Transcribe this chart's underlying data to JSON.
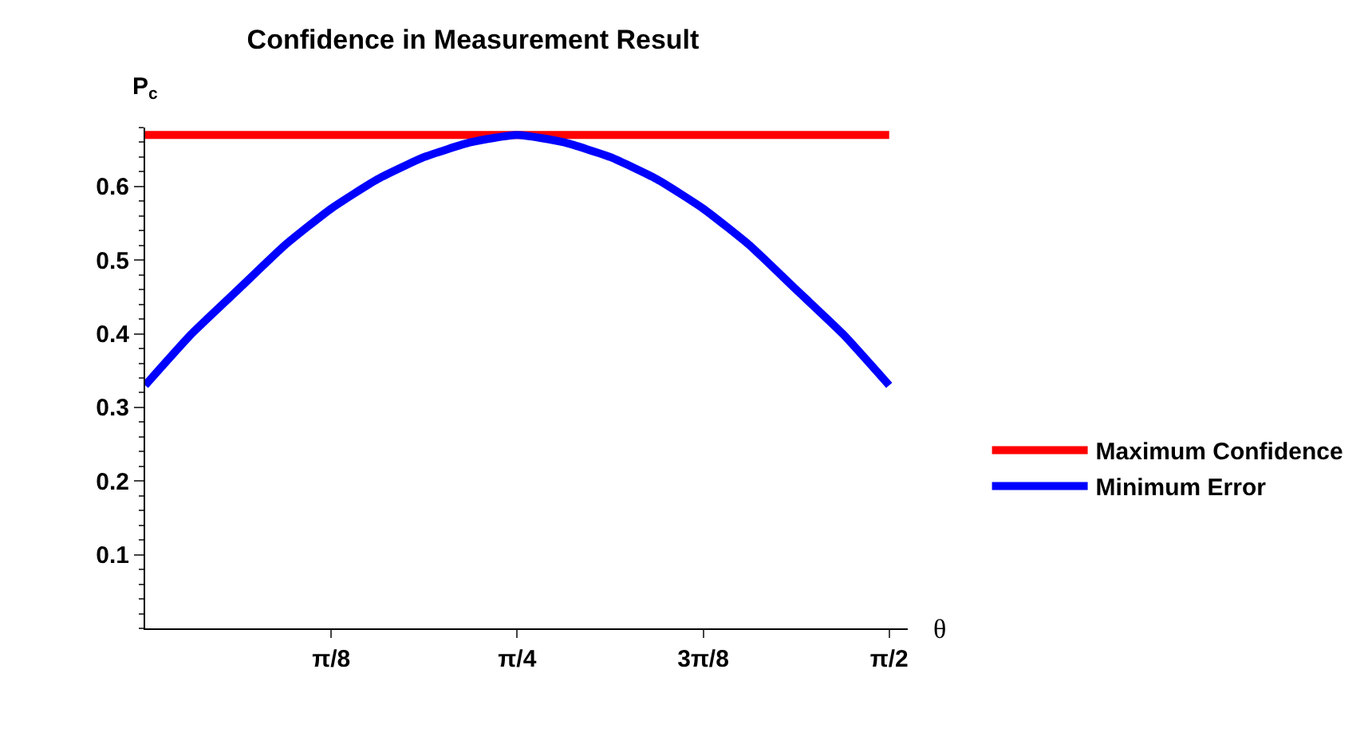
{
  "chart_data": {
    "type": "line",
    "title": "Confidence in Measurement Result",
    "xlabel": "θ",
    "ylabel": "P$_{c}$",
    "x": [
      0,
      0.0982,
      0.1963,
      0.2945,
      0.3927,
      0.4909,
      0.589,
      0.6872,
      0.7854,
      0.8836,
      0.9817,
      1.0799,
      1.1781,
      1.2763,
      1.3744,
      1.4726,
      1.5708
    ],
    "series": [
      {
        "name": "Maximum Confidence",
        "color": "#ff0000",
        "x": [
          0,
          1.5708
        ],
        "values": [
          0.67,
          0.67
        ]
      },
      {
        "name": "Minimum Error",
        "color": "#0000ff",
        "values": [
          0.33,
          0.4,
          0.46,
          0.52,
          0.57,
          0.61,
          0.64,
          0.66,
          0.67,
          0.66,
          0.64,
          0.61,
          0.57,
          0.52,
          0.46,
          0.4,
          0.33
        ]
      }
    ],
    "xlim": [
      0,
      1.61
    ],
    "ylim": [
      0,
      0.68
    ],
    "xticks": [
      {
        "value": 0.3927,
        "label": "π/8"
      },
      {
        "value": 0.7854,
        "label": "π/4"
      },
      {
        "value": 1.1781,
        "label": "3π/8"
      },
      {
        "value": 1.5708,
        "label": "π/2"
      }
    ],
    "yticks": [
      0.1,
      0.2,
      0.3,
      0.4,
      0.5,
      0.6
    ],
    "legend": "right",
    "marker": "none",
    "line_style": "solid"
  }
}
